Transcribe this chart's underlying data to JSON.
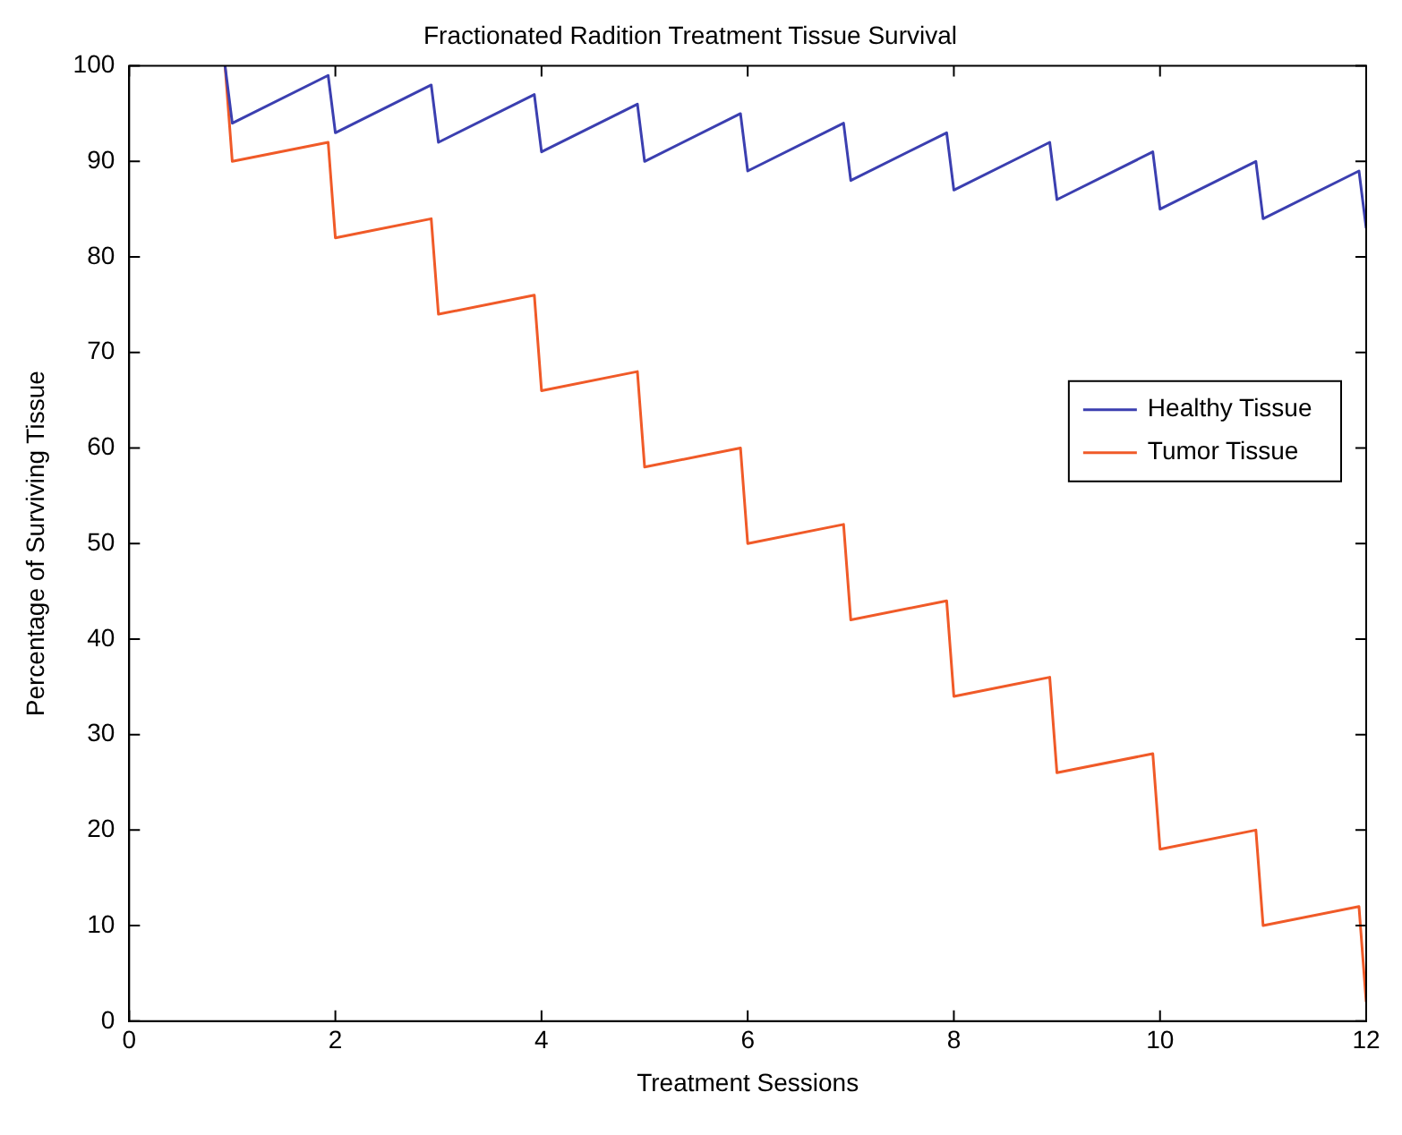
{
  "chart_data": {
    "type": "line",
    "title": "Fractionated Radition Treatment Tissue Survival",
    "xlabel": "Treatment Sessions",
    "ylabel": "Percentage of Surviving Tissue",
    "series": [
      {
        "name": "Healthy Tissue",
        "color": "#3b3fb0",
        "x": [
          0.93,
          1,
          1.93,
          2,
          2.93,
          3,
          3.93,
          4,
          4.93,
          5,
          5.93,
          6,
          6.93,
          7,
          7.93,
          8,
          8.93,
          9,
          9.93,
          10,
          10.93,
          11,
          11.93,
          12
        ],
        "values": [
          100,
          94,
          99,
          93,
          98,
          92,
          97,
          91,
          96,
          90,
          95,
          89,
          94,
          88,
          93,
          87,
          92,
          86,
          91,
          85,
          90,
          84,
          89,
          83
        ]
      },
      {
        "name": "Tumor Tissue",
        "color": "#f05a28",
        "x": [
          0.93,
          1,
          1.93,
          2,
          2.93,
          3,
          3.93,
          4,
          4.93,
          5,
          5.93,
          6,
          6.93,
          7,
          7.93,
          8,
          8.93,
          9,
          9.93,
          10,
          10.93,
          11,
          11.93,
          12
        ],
        "values": [
          100,
          90,
          92,
          82,
          84,
          74,
          76,
          66,
          68,
          58,
          60,
          50,
          52,
          42,
          44,
          34,
          36,
          26,
          28,
          18,
          20,
          10,
          12,
          2
        ]
      }
    ],
    "xlim": [
      0,
      12
    ],
    "xticks": [
      0,
      2,
      4,
      6,
      8,
      10,
      12
    ],
    "ylim": [
      0,
      100
    ],
    "yticks": [
      0,
      10,
      20,
      30,
      40,
      50,
      60,
      70,
      80,
      90,
      100
    ],
    "grid": false,
    "legend": "right",
    "marker": "none",
    "line_style": "solid"
  }
}
